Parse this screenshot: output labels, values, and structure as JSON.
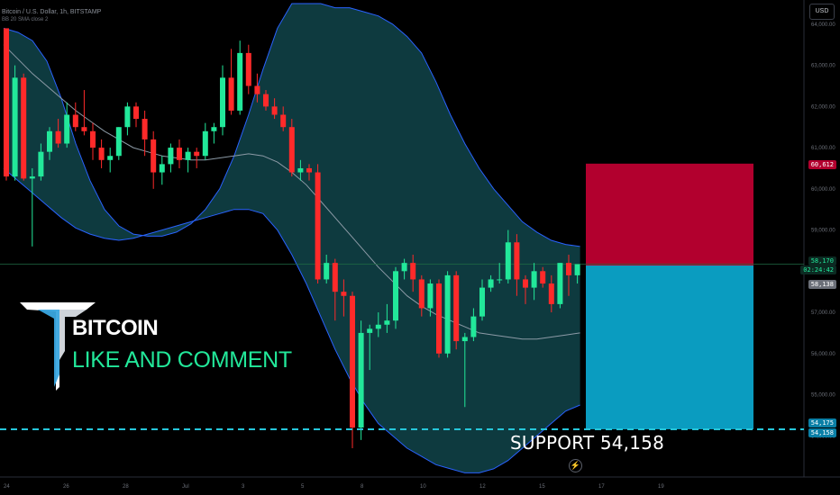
{
  "chart_info": {
    "symbol": "Bitcoin / U.S. Dollar, 1h, BITSTAMP",
    "indicator": "BB 20 SMA close 2"
  },
  "currency_button": "USD",
  "overlay": {
    "title": "BITCOIN",
    "subtitle": "LIKE AND COMMENT",
    "support_text": "SUPPORT  54,158"
  },
  "price_tags": {
    "take_profit": "60,612",
    "current_price": "58,170",
    "countdown": "02:24:42",
    "entry": "58,138",
    "support_a": "54,175",
    "support_b": "54,158"
  },
  "colors": {
    "up": "#22e89a",
    "down": "#ff2a2a",
    "band_fill": "#0e3a3f",
    "band_line": "#2962ff",
    "mid_line": "#8c9aa6",
    "target_box": "#b2002e",
    "stop_box": "#0a9cc0",
    "support_line": "#26c6da"
  },
  "chart_data": {
    "type": "candlestick",
    "y_range": [
      53000,
      64500
    ],
    "y_ticks": [
      54000,
      55000,
      56000,
      57000,
      58000,
      59000,
      60000,
      61000,
      62000,
      63000,
      64000
    ],
    "x_ticks": [
      "24",
      "26",
      "28",
      "Jul",
      "3",
      "5",
      "8",
      "10",
      "12",
      "15",
      "17",
      "19"
    ],
    "candles": [
      [
        63900,
        63900,
        60200,
        60300
      ],
      [
        60300,
        63000,
        60200,
        62700
      ],
      [
        62700,
        62800,
        60200,
        60250
      ],
      [
        60250,
        60500,
        58600,
        60300
      ],
      [
        60300,
        61100,
        60200,
        60900
      ],
      [
        60900,
        61500,
        60700,
        61400
      ],
      [
        61400,
        61700,
        61000,
        61100
      ],
      [
        61100,
        62100,
        61000,
        61800
      ],
      [
        61800,
        62100,
        61400,
        61500
      ],
      [
        61500,
        62400,
        61300,
        61400
      ],
      [
        61400,
        61600,
        60700,
        61000
      ],
      [
        61000,
        61200,
        60500,
        60700
      ],
      [
        60700,
        61000,
        60400,
        60800
      ],
      [
        60800,
        61500,
        60700,
        61500
      ],
      [
        61500,
        62100,
        61300,
        62000
      ],
      [
        62000,
        62100,
        61500,
        61700
      ],
      [
        61700,
        61900,
        60800,
        61200
      ],
      [
        61200,
        61400,
        60000,
        60400
      ],
      [
        60400,
        60800,
        60100,
        60600
      ],
      [
        60600,
        61100,
        60400,
        61000
      ],
      [
        61000,
        61200,
        60500,
        60700
      ],
      [
        60700,
        61000,
        60400,
        60900
      ],
      [
        60900,
        61000,
        60500,
        60800
      ],
      [
        60800,
        61600,
        60700,
        61400
      ],
      [
        61400,
        61600,
        61100,
        61500
      ],
      [
        61500,
        63000,
        61300,
        62700
      ],
      [
        62700,
        63400,
        61800,
        61900
      ],
      [
        61900,
        63600,
        61800,
        63300
      ],
      [
        63300,
        63500,
        62300,
        62500
      ],
      [
        62500,
        62800,
        62100,
        62300
      ],
      [
        62300,
        62400,
        61900,
        62000
      ],
      [
        62000,
        62200,
        61700,
        61800
      ],
      [
        61800,
        62000,
        61400,
        61500
      ],
      [
        61500,
        61700,
        60300,
        60400
      ],
      [
        60400,
        60700,
        60200,
        60500
      ],
      [
        60500,
        60600,
        60200,
        60400
      ],
      [
        60400,
        60600,
        57700,
        57800
      ],
      [
        57800,
        58400,
        57700,
        58200
      ],
      [
        58200,
        58300,
        56800,
        57500
      ],
      [
        57500,
        57800,
        56900,
        57400
      ],
      [
        57400,
        57500,
        53700,
        54200
      ],
      [
        54200,
        56800,
        53900,
        56500
      ],
      [
        56500,
        56700,
        55600,
        56600
      ],
      [
        56600,
        57000,
        56400,
        56700
      ],
      [
        56700,
        57200,
        56500,
        56800
      ],
      [
        56800,
        58100,
        56600,
        58000
      ],
      [
        58000,
        58300,
        57800,
        58200
      ],
      [
        58200,
        58400,
        57500,
        57800
      ],
      [
        57800,
        57900,
        56900,
        57100
      ],
      [
        57100,
        57800,
        56900,
        57700
      ],
      [
        57700,
        57800,
        55900,
        56000
      ],
      [
        56000,
        58000,
        55900,
        57900
      ],
      [
        57900,
        58000,
        56100,
        56300
      ],
      [
        56300,
        56500,
        54700,
        56400
      ],
      [
        56400,
        57100,
        56300,
        56900
      ],
      [
        56900,
        57800,
        56800,
        57600
      ],
      [
        57600,
        57900,
        57500,
        57800
      ],
      [
        57800,
        58200,
        57700,
        57800
      ],
      [
        57800,
        59000,
        57700,
        58700
      ],
      [
        58700,
        58900,
        57400,
        57800
      ],
      [
        57800,
        57900,
        57200,
        57600
      ],
      [
        57600,
        58200,
        57300,
        58000
      ],
      [
        58000,
        58100,
        57600,
        57700
      ],
      [
        57700,
        57900,
        57000,
        57200
      ],
      [
        57200,
        58200,
        57100,
        58200
      ],
      [
        58200,
        58400,
        57400,
        57900
      ],
      [
        57900,
        58100,
        57700,
        58170
      ]
    ],
    "upper_band": [
      63900,
      63800,
      63600,
      63100,
      62200,
      61100,
      60200,
      59500,
      59100,
      58900,
      58850,
      58850,
      58950,
      59150,
      59500,
      60000,
      60800,
      61800,
      62900,
      63900,
      64500,
      64500,
      64500,
      64400,
      64400,
      64300,
      64200,
      64000,
      63700,
      63300,
      62600,
      61800,
      61100,
      60500,
      60000,
      59600,
      59200,
      58950,
      58750,
      58650,
      58600
    ],
    "lower_band": [
      60500,
      60200,
      59900,
      59600,
      59300,
      59050,
      58900,
      58800,
      58750,
      58800,
      58900,
      59000,
      59100,
      59200,
      59300,
      59400,
      59500,
      59500,
      59400,
      59000,
      58400,
      57700,
      56900,
      56100,
      55400,
      54800,
      54300,
      54000,
      53700,
      53500,
      53300,
      53200,
      53100,
      53100,
      53200,
      53400,
      53700,
      54000,
      54300,
      54600,
      54750
    ],
    "middle_band": [
      63500,
      63150,
      62800,
      62500,
      62200,
      61900,
      61650,
      61400,
      61200,
      61000,
      60900,
      60800,
      60750,
      60700,
      60700,
      60750,
      60800,
      60850,
      60800,
      60650,
      60400,
      60100,
      59700,
      59300,
      58900,
      58500,
      58100,
      57750,
      57400,
      57150,
      56950,
      56800,
      56650,
      56500,
      56450,
      56400,
      56350,
      56350,
      56400,
      56450,
      56500
    ],
    "target_box": {
      "top": 60612,
      "bottom": 58138
    },
    "stop_box": {
      "top": 58138,
      "bottom": 54158
    },
    "horizontal_lines": {
      "current": 58170,
      "support": 54158
    }
  }
}
